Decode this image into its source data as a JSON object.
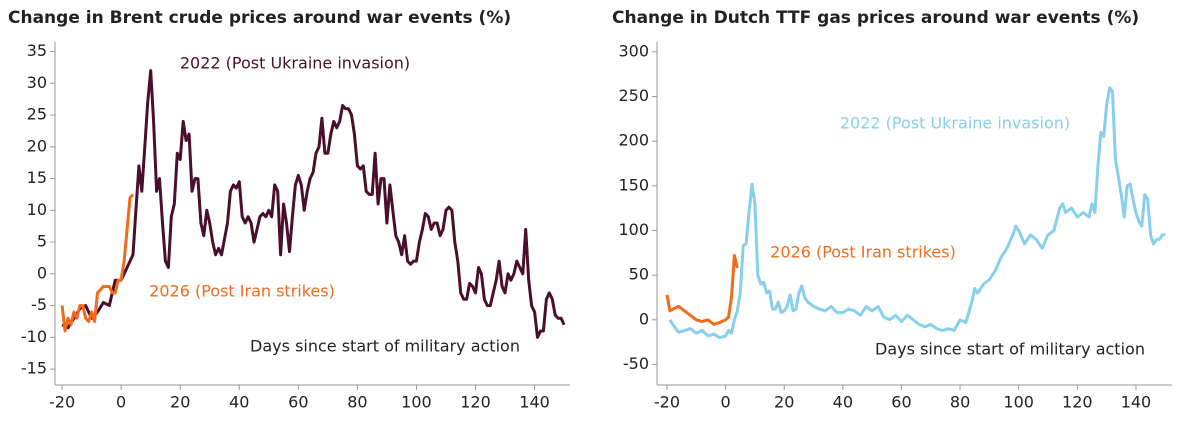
{
  "chart_data": [
    {
      "type": "line",
      "title": "Change in Brent crude prices around war events (%)",
      "xlabel": "Days since start of military action",
      "xlim": [
        -22.4,
        152
      ],
      "ylim": [
        -17.5,
        36.5
      ],
      "xticks": [
        -20,
        0,
        20,
        40,
        60,
        80,
        100,
        120,
        140
      ],
      "yticks": [
        -15,
        -10,
        -5,
        0,
        5,
        10,
        15,
        20,
        25,
        30,
        35
      ],
      "series": [
        {
          "name": "2022 (Post Ukraine invasion)",
          "color": "#4a0f2a",
          "x": [
            -20,
            -18,
            -16,
            -14,
            -12,
            -10,
            -8,
            -6,
            -4,
            -2,
            0,
            2,
            4,
            5,
            6,
            7,
            8,
            9,
            10,
            11,
            12,
            13,
            14,
            15,
            16,
            17,
            18,
            19,
            20,
            21,
            22,
            23,
            24,
            25,
            26,
            27,
            28,
            29,
            30,
            31,
            32,
            33,
            34,
            36,
            37,
            38,
            39,
            40,
            41,
            42,
            43,
            44,
            45,
            46,
            47,
            48,
            49,
            50,
            51,
            52,
            53,
            54,
            55,
            56,
            57,
            58,
            59,
            60,
            61,
            62,
            63,
            64,
            65,
            66,
            67,
            68,
            69,
            70,
            71,
            72,
            73,
            74,
            75,
            76,
            77,
            78,
            79,
            80,
            81,
            82,
            83,
            84,
            85,
            86,
            87,
            88,
            89,
            90,
            91,
            92,
            93,
            94,
            95,
            96,
            97,
            98,
            99,
            100,
            101,
            102,
            103,
            104,
            105,
            106,
            107,
            108,
            109,
            110,
            111,
            112,
            113,
            114,
            115,
            116,
            117,
            118,
            119,
            120,
            121,
            122,
            123,
            124,
            125,
            126,
            127,
            128,
            129,
            130,
            131,
            132,
            133,
            134,
            135,
            136,
            137,
            138,
            139,
            140,
            141,
            142,
            143,
            144,
            145,
            146,
            147,
            148,
            149,
            150
          ],
          "values": [
            -8,
            -8.5,
            -7,
            -5.5,
            -5,
            -7,
            -6,
            -4.5,
            -5,
            -1,
            -1,
            1,
            3,
            10,
            17,
            13,
            20,
            27,
            32,
            24,
            13,
            15,
            8,
            2,
            1,
            9,
            11,
            19,
            18,
            24,
            21,
            22,
            13,
            15,
            15,
            8,
            6,
            10,
            8,
            5,
            3,
            4,
            3,
            8,
            13,
            14,
            13.5,
            14.5,
            9,
            8,
            9,
            8,
            5,
            7,
            9,
            9.5,
            9,
            10,
            9,
            14,
            13,
            3,
            11,
            8,
            3.5,
            9,
            14,
            15.5,
            14,
            10,
            13,
            15,
            16,
            19,
            20,
            24.5,
            19,
            19,
            22,
            24,
            23,
            24,
            26.5,
            26,
            26,
            25,
            22,
            17,
            16.5,
            17,
            13,
            12.5,
            12.5,
            19,
            11,
            15,
            15,
            8,
            14,
            10,
            6,
            5,
            3,
            6,
            2,
            1.5,
            2,
            2,
            5,
            7,
            9.5,
            9,
            7,
            8,
            8,
            6,
            7,
            10,
            10.5,
            10,
            5,
            2,
            -3,
            -4,
            -4,
            -1.5,
            -2,
            -3,
            1,
            0,
            -4,
            -5,
            -5,
            -3,
            -1,
            2,
            -2,
            -3,
            0,
            -1,
            0,
            2,
            1,
            0,
            7,
            -1,
            -5,
            -6,
            -10,
            -9,
            -9,
            -4,
            -3,
            -4,
            -6.5,
            -7,
            -7,
            -8
          ]
        },
        {
          "name": "2026 (Post Iran strikes)",
          "color": "#f26a1b",
          "x": [
            -20,
            -19,
            -18,
            -17,
            -16,
            -15,
            -14,
            -13,
            -12,
            -11,
            -10,
            -9,
            -8,
            -6,
            -5,
            -4,
            -3,
            -2,
            -1,
            0,
            1,
            2,
            3,
            4
          ],
          "values": [
            -5,
            -9,
            -7,
            -8,
            -6,
            -7,
            -5,
            -5,
            -7,
            -7.5,
            -6,
            -7.5,
            -3,
            -2,
            -2,
            -2,
            -3,
            -3,
            -1,
            -1,
            2,
            7,
            12,
            12.5
          ]
        }
      ]
    },
    {
      "type": "line",
      "title": "Change in Dutch TTF gas prices around war events (%)",
      "xlabel": "Days since start of military action",
      "xlim": [
        -23.4,
        152.3
      ],
      "ylim": [
        -73,
        311
      ],
      "xticks": [
        -20,
        0,
        20,
        40,
        60,
        80,
        100,
        120,
        140
      ],
      "yticks": [
        -50,
        0,
        50,
        100,
        150,
        200,
        250,
        300
      ],
      "series": [
        {
          "name": "2022 (Post Ukraine invasion)",
          "color": "#88cfee",
          "x": [
            -19,
            -18,
            -17,
            -16,
            -14,
            -12,
            -10,
            -8,
            -6,
            -4,
            -2,
            0,
            1,
            2,
            3,
            4,
            5,
            6,
            7,
            8,
            9,
            10,
            11,
            12,
            13,
            14,
            15,
            16,
            17,
            18,
            19,
            20,
            21,
            22,
            23,
            24,
            25,
            26,
            27,
            28,
            30,
            32,
            34,
            36,
            38,
            40,
            42,
            44,
            46,
            48,
            50,
            52,
            54,
            56,
            58,
            60,
            62,
            64,
            66,
            68,
            70,
            72,
            74,
            76,
            78,
            80,
            82,
            84,
            85,
            86,
            88,
            90,
            92,
            94,
            96,
            98,
            99,
            100,
            102,
            104,
            106,
            108,
            110,
            112,
            114,
            115,
            116,
            118,
            120,
            122,
            124,
            125,
            126,
            127,
            128,
            129,
            130,
            131,
            132,
            133,
            134,
            135,
            136,
            137,
            138,
            139,
            140,
            141,
            142,
            143,
            144,
            145,
            146,
            147,
            148,
            149,
            150
          ],
          "values": [
            0,
            -5,
            -10,
            -14,
            -12,
            -10,
            -15,
            -12,
            -18,
            -16,
            -20,
            -18,
            -12,
            -15,
            0,
            10,
            30,
            83,
            85,
            120,
            152,
            130,
            50,
            40,
            42,
            30,
            32,
            12,
            12,
            20,
            8,
            10,
            15,
            28,
            10,
            12,
            30,
            38,
            25,
            20,
            15,
            12,
            10,
            15,
            8,
            8,
            12,
            10,
            5,
            15,
            10,
            15,
            3,
            0,
            5,
            -2,
            5,
            0,
            -5,
            -8,
            -5,
            -10,
            -12,
            -10,
            -12,
            0,
            -3,
            20,
            35,
            30,
            40,
            45,
            55,
            70,
            80,
            95,
            105,
            100,
            85,
            95,
            90,
            80,
            95,
            100,
            125,
            130,
            120,
            125,
            115,
            120,
            115,
            130,
            120,
            170,
            210,
            205,
            240,
            260,
            255,
            180,
            160,
            140,
            115,
            150,
            152,
            135,
            120,
            110,
            105,
            140,
            135,
            95,
            85,
            90,
            90,
            95,
            95
          ]
        },
        {
          "name": "2026 (Post Iran strikes)",
          "color": "#f26a1b",
          "x": [
            -20,
            -19,
            -18,
            -16,
            -14,
            -12,
            -10,
            -8,
            -6,
            -4,
            -2,
            0,
            1,
            2,
            3,
            4
          ],
          "values": [
            28,
            10,
            12,
            15,
            10,
            5,
            0,
            -2,
            0,
            -5,
            -3,
            0,
            3,
            25,
            72,
            58
          ]
        }
      ]
    }
  ]
}
